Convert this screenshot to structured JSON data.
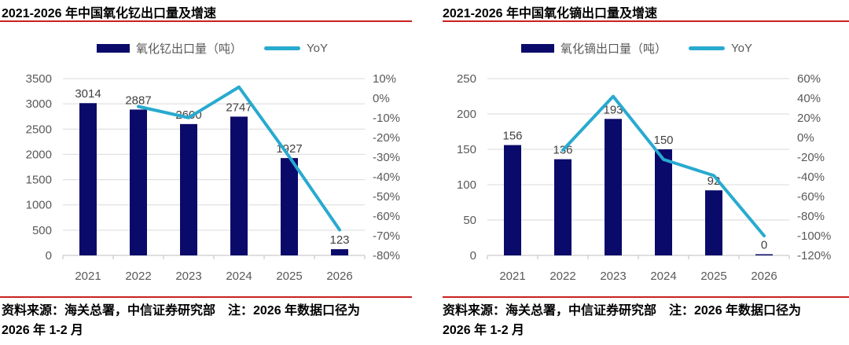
{
  "colors": {
    "accent_red": "#c9211e",
    "bar_navy": "#0a0a6b",
    "line_cyan": "#28aacf",
    "grid": "#d9d9d9",
    "axis_line": "#bfbfbf",
    "tick_text": "#595959",
    "data_label_text": "#404040"
  },
  "panels": [
    {
      "source_note": "资料来源：海关总署，中信证券研究部　注：2026 年数据口径为\n2026 年 1-2 月"
    },
    {
      "source_note": "资料来源：海关总署，中信证券研究部　注：2026 年数据口径为\n2026 年 1-2 月"
    }
  ],
  "chart_data": [
    {
      "type": "bar",
      "title": "2021-2026 年中国氧化钇出口量及增速",
      "categories": [
        "2021",
        "2022",
        "2023",
        "2024",
        "2025",
        "2026"
      ],
      "series": [
        {
          "name": "氧化钇出口量（吨）",
          "type": "bar",
          "axis": "left",
          "values": [
            3014,
            2887,
            2600,
            2747,
            1927,
            123
          ]
        },
        {
          "name": "YoY",
          "type": "line",
          "axis": "right",
          "unit": "%",
          "values": [
            null,
            -4.2,
            -9.9,
            5.7,
            -29.8,
            -67
          ]
        }
      ],
      "left_axis": {
        "min": 0,
        "max": 3500,
        "step": 500
      },
      "right_axis": {
        "min": -80,
        "max": 10,
        "step": 10,
        "format": "percent"
      },
      "grid": true,
      "legend_position": "top"
    },
    {
      "type": "bar",
      "title": "2021-2026 年中国氧化镝出口量及增速",
      "categories": [
        "2021",
        "2022",
        "2023",
        "2024",
        "2025",
        "2026"
      ],
      "series": [
        {
          "name": "氧化镝出口量（吨）",
          "type": "bar",
          "axis": "left",
          "values": [
            156,
            136,
            193,
            150,
            92,
            0
          ]
        },
        {
          "name": "YoY",
          "type": "line",
          "axis": "right",
          "unit": "%",
          "values": [
            null,
            -12.8,
            41.9,
            -22.3,
            -38.7,
            -100
          ]
        }
      ],
      "left_axis": {
        "min": 0,
        "max": 250,
        "step": 50
      },
      "right_axis": {
        "min": -120,
        "max": 60,
        "step": 20,
        "format": "percent"
      },
      "grid": true,
      "legend_position": "top"
    }
  ]
}
